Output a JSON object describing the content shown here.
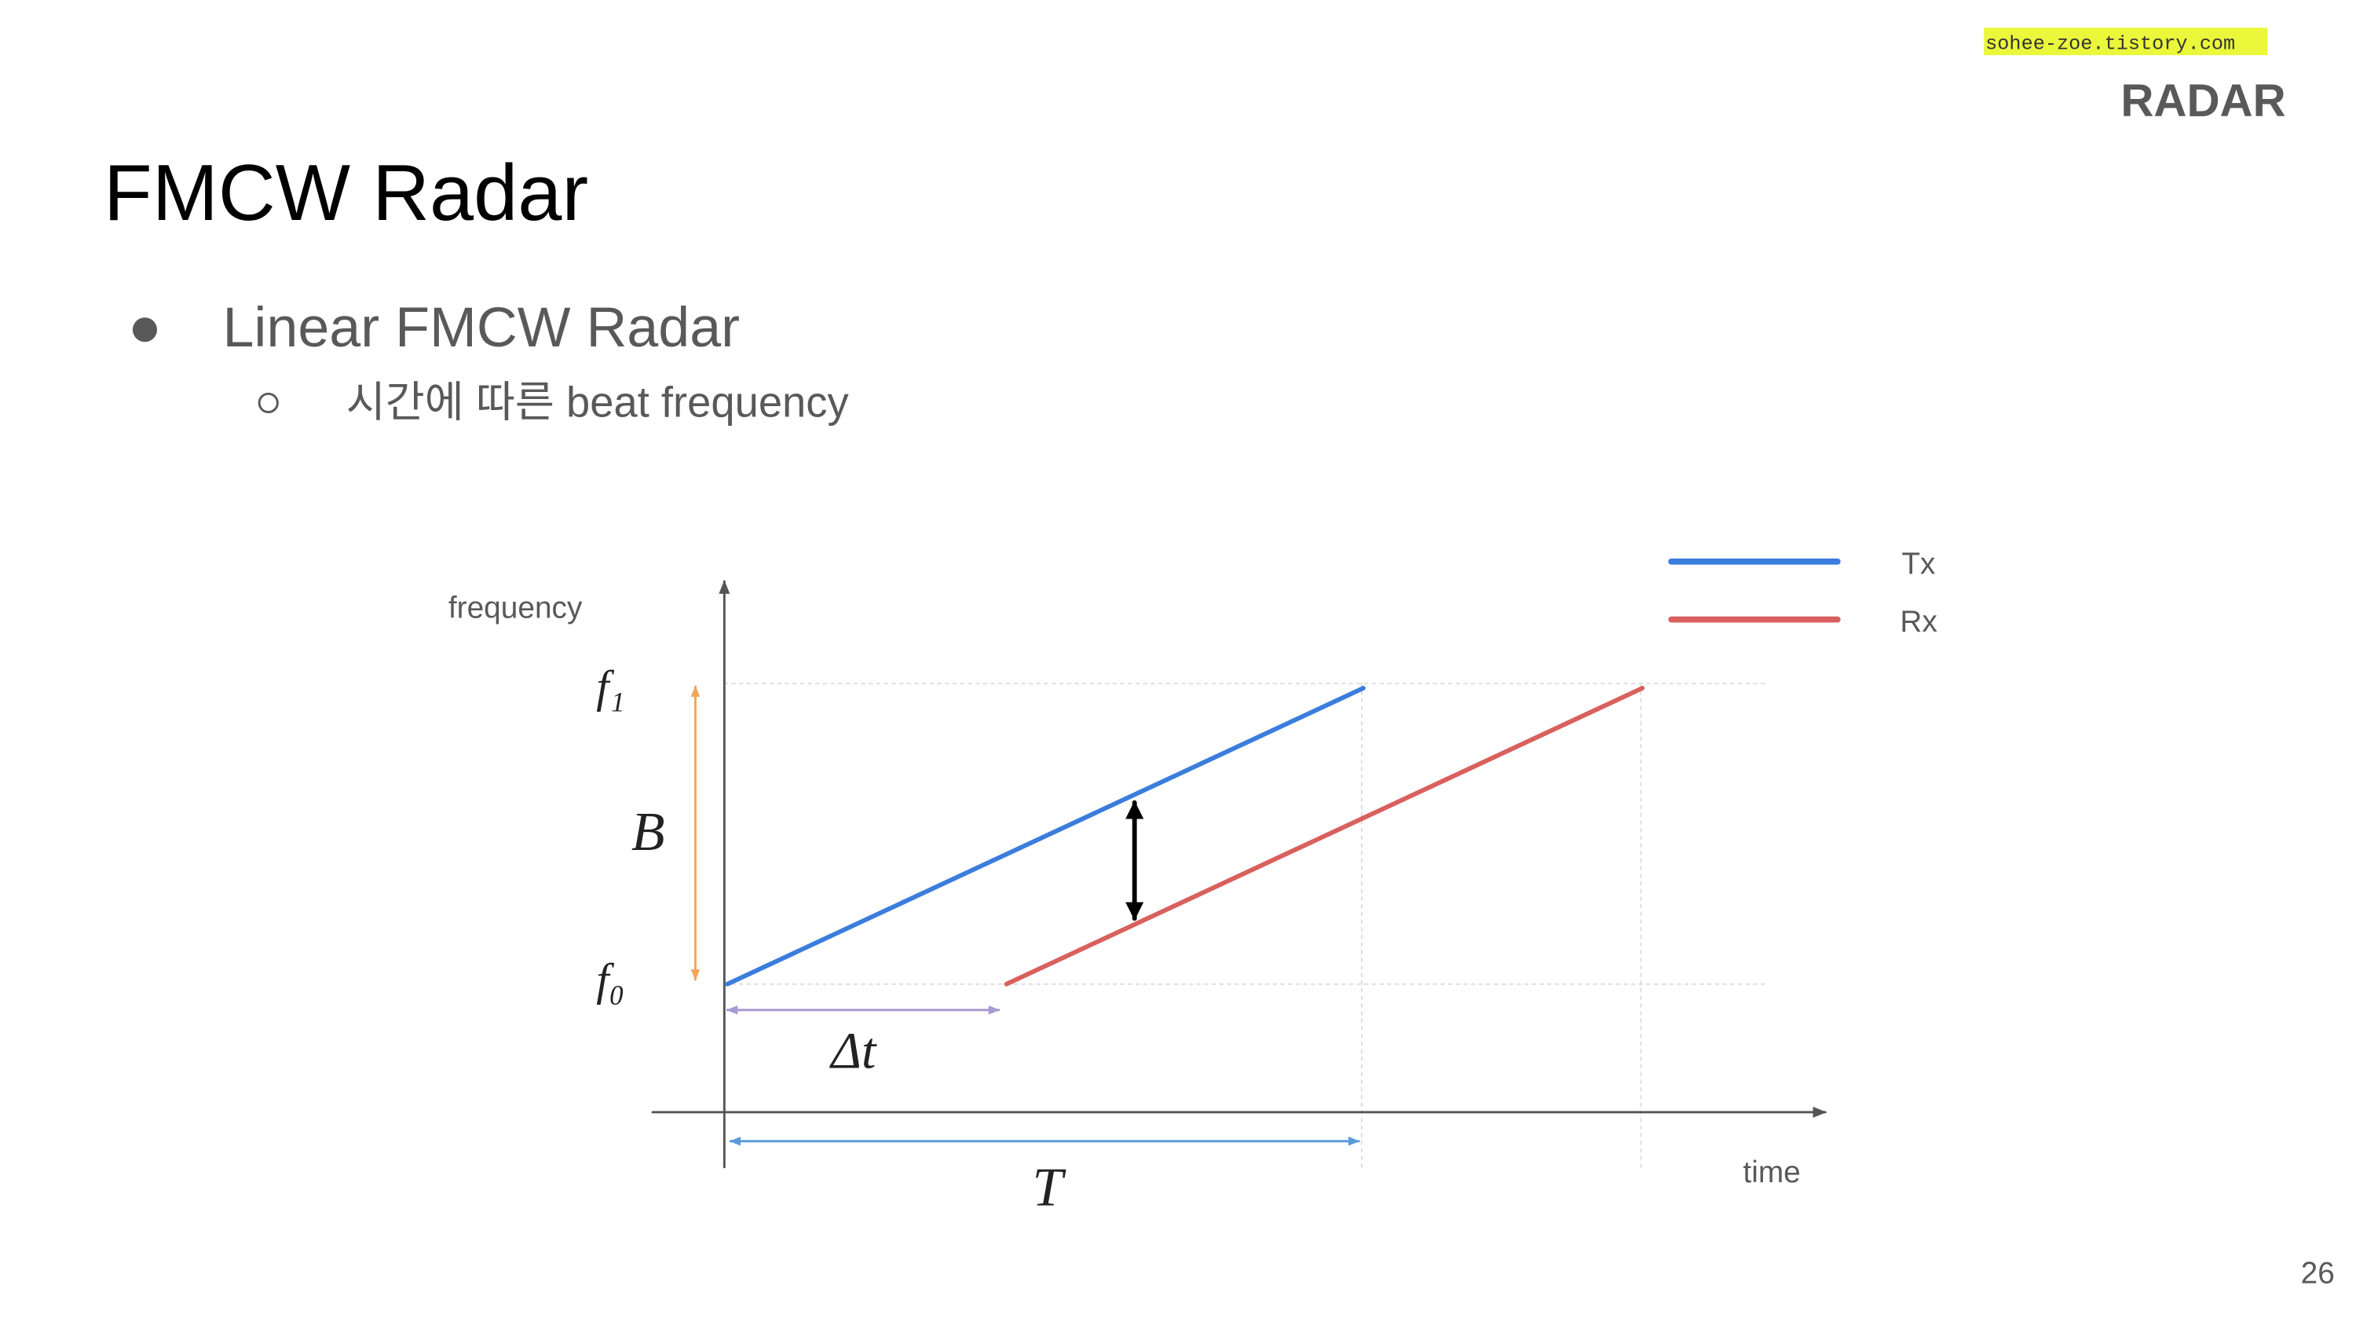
{
  "header": {
    "watermark": "sohee-zoe.tistory.com",
    "section": "RADAR",
    "title": "FMCW Radar",
    "page_number": "26"
  },
  "bullets": [
    {
      "text": "Linear FMCW Radar",
      "sub": [
        "시간에 따른 beat frequency"
      ]
    }
  ],
  "diagram": {
    "y_axis_label": "frequency",
    "x_axis_label": "time",
    "f1_label": "f₁",
    "f0_label": "f₀",
    "bandwidth_label": "B",
    "delay_label": "Δt",
    "period_label": "T",
    "legend": [
      {
        "label": "Tx",
        "color": "#3b7ddd"
      },
      {
        "label": "Rx",
        "color": "#d9605e"
      }
    ]
  }
}
